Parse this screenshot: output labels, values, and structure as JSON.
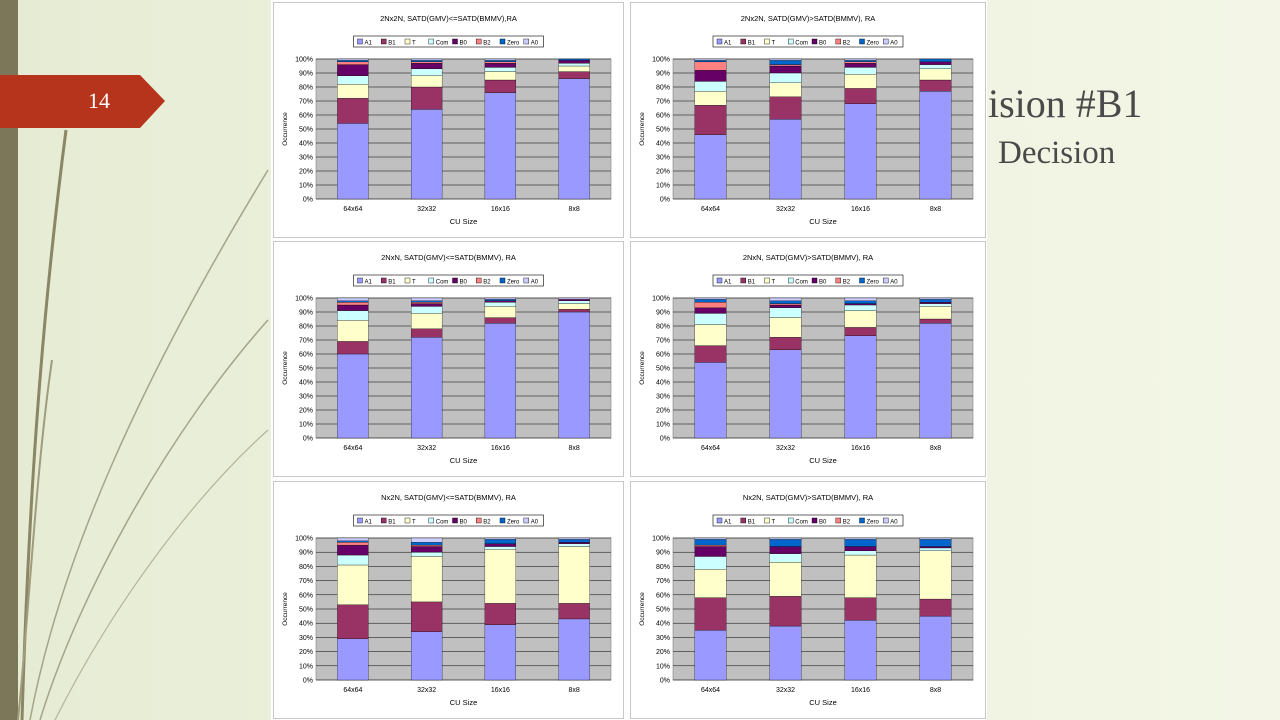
{
  "slide": {
    "number": "14",
    "title_fragment": "ision #B1",
    "subtitle_fragment": "Decision"
  },
  "legend": [
    "A1",
    "B1",
    "T",
    "Com",
    "B0",
    "B2",
    "Zero",
    "A0"
  ],
  "colors": {
    "A1": "#9999ff",
    "B1": "#993366",
    "T": "#ffffcc",
    "Com": "#ccffff",
    "B0": "#660066",
    "B2": "#ff8080",
    "Zero": "#0066cc",
    "A0": "#ccccff",
    "plot_bg": "#c0c0c0",
    "accent": "#b5341b",
    "sidebar": "#7b7758"
  },
  "chart_data": [
    {
      "type": "bar",
      "stacked": true,
      "title": "2Nx2N, SATD(GMV)<=SATD(BMMV),RA",
      "xlabel": "CU Size",
      "ylabel": "Occurrence",
      "categories": [
        "64x64",
        "32x32",
        "16x16",
        "8x8"
      ],
      "yticks": [
        "0%",
        "10%",
        "20%",
        "30%",
        "40%",
        "50%",
        "60%",
        "70%",
        "80%",
        "90%",
        "100%"
      ],
      "ylim": [
        0,
        100
      ],
      "grid": true,
      "legend_position": "top",
      "series": [
        {
          "name": "A1",
          "values": [
            54,
            64,
            76,
            86
          ]
        },
        {
          "name": "B1",
          "values": [
            18,
            16,
            9,
            5
          ]
        },
        {
          "name": "T",
          "values": [
            10,
            8,
            6,
            4
          ]
        },
        {
          "name": "Com",
          "values": [
            6,
            5,
            3,
            2
          ]
        },
        {
          "name": "B0",
          "values": [
            8,
            4,
            3,
            2
          ]
        },
        {
          "name": "B2",
          "values": [
            2,
            1,
            1,
            0
          ]
        },
        {
          "name": "Zero",
          "values": [
            1,
            1,
            1,
            1
          ]
        },
        {
          "name": "A0",
          "values": [
            1,
            1,
            1,
            0
          ]
        }
      ]
    },
    {
      "type": "bar",
      "stacked": true,
      "title": "2Nx2N, SATD(GMV)>SATD(BMMV), RA",
      "xlabel": "CU Size",
      "ylabel": "Occurrence",
      "categories": [
        "64x64",
        "32x32",
        "16x16",
        "8x8"
      ],
      "yticks": [
        "0%",
        "10%",
        "20%",
        "30%",
        "40%",
        "50%",
        "60%",
        "70%",
        "80%",
        "90%",
        "100%"
      ],
      "ylim": [
        0,
        100
      ],
      "grid": true,
      "legend_position": "top",
      "series": [
        {
          "name": "A1",
          "values": [
            46,
            57,
            68,
            77
          ]
        },
        {
          "name": "B1",
          "values": [
            21,
            16,
            11,
            8
          ]
        },
        {
          "name": "T",
          "values": [
            10,
            10,
            10,
            8
          ]
        },
        {
          "name": "Com",
          "values": [
            7,
            7,
            5,
            3
          ]
        },
        {
          "name": "B0",
          "values": [
            8,
            5,
            3,
            2
          ]
        },
        {
          "name": "B2",
          "values": [
            6,
            1,
            1,
            0
          ]
        },
        {
          "name": "Zero",
          "values": [
            1,
            3,
            1,
            2
          ]
        },
        {
          "name": "A0",
          "values": [
            1,
            1,
            1,
            0
          ]
        }
      ]
    },
    {
      "type": "bar",
      "stacked": true,
      "title": "2NxN, SATD(GMV)<=SATD(BMMV), RA",
      "xlabel": "CU Size",
      "ylabel": "Occurrence",
      "categories": [
        "64x64",
        "32x32",
        "16x16",
        "8x8"
      ],
      "yticks": [
        "0%",
        "10%",
        "20%",
        "30%",
        "40%",
        "50%",
        "60%",
        "70%",
        "80%",
        "90%",
        "100%"
      ],
      "ylim": [
        0,
        100
      ],
      "grid": true,
      "legend_position": "top",
      "series": [
        {
          "name": "A1",
          "values": [
            60,
            72,
            82,
            90
          ]
        },
        {
          "name": "B1",
          "values": [
            9,
            6,
            4,
            2
          ]
        },
        {
          "name": "T",
          "values": [
            15,
            11,
            8,
            4
          ]
        },
        {
          "name": "Com",
          "values": [
            7,
            5,
            3,
            2
          ]
        },
        {
          "name": "B0",
          "values": [
            4,
            2,
            1,
            1
          ]
        },
        {
          "name": "B2",
          "values": [
            2,
            1,
            0,
            0
          ]
        },
        {
          "name": "Zero",
          "values": [
            1,
            1,
            1,
            0
          ]
        },
        {
          "name": "A0",
          "values": [
            2,
            2,
            1,
            1
          ]
        }
      ]
    },
    {
      "type": "bar",
      "stacked": true,
      "title": "2NxN, SATD(GMV)>SATD(BMMV), RA",
      "xlabel": "CU Size",
      "ylabel": "Occurrence",
      "categories": [
        "64x64",
        "32x32",
        "16x16",
        "8x8"
      ],
      "yticks": [
        "0%",
        "10%",
        "20%",
        "30%",
        "40%",
        "50%",
        "60%",
        "70%",
        "80%",
        "90%",
        "100%"
      ],
      "ylim": [
        0,
        100
      ],
      "grid": true,
      "legend_position": "top",
      "series": [
        {
          "name": "A1",
          "values": [
            54,
            63,
            73,
            82
          ]
        },
        {
          "name": "B1",
          "values": [
            12,
            9,
            6,
            3
          ]
        },
        {
          "name": "T",
          "values": [
            15,
            14,
            12,
            9
          ]
        },
        {
          "name": "Com",
          "values": [
            8,
            7,
            4,
            2
          ]
        },
        {
          "name": "B0",
          "values": [
            4,
            2,
            1,
            1
          ]
        },
        {
          "name": "B2",
          "values": [
            4,
            1,
            0,
            0
          ]
        },
        {
          "name": "Zero",
          "values": [
            2,
            2,
            2,
            2
          ]
        },
        {
          "name": "A0",
          "values": [
            1,
            2,
            2,
            1
          ]
        }
      ]
    },
    {
      "type": "bar",
      "stacked": true,
      "title": "Nx2N, SATD(GMV)<=SATD(BMMV), RA",
      "xlabel": "CU Size",
      "ylabel": "Occurrence",
      "categories": [
        "64x64",
        "32x32",
        "16x16",
        "8x8"
      ],
      "yticks": [
        "0%",
        "10%",
        "20%",
        "30%",
        "40%",
        "50%",
        "60%",
        "70%",
        "80%",
        "90%",
        "100%"
      ],
      "ylim": [
        0,
        100
      ],
      "grid": true,
      "legend_position": "top",
      "series": [
        {
          "name": "A1",
          "values": [
            29,
            34,
            39,
            43
          ]
        },
        {
          "name": "B1",
          "values": [
            24,
            21,
            15,
            11
          ]
        },
        {
          "name": "T",
          "values": [
            28,
            32,
            38,
            40
          ]
        },
        {
          "name": "Com",
          "values": [
            7,
            3,
            2,
            2
          ]
        },
        {
          "name": "B0",
          "values": [
            7,
            4,
            2,
            1
          ]
        },
        {
          "name": "B2",
          "values": [
            2,
            1,
            0,
            0
          ]
        },
        {
          "name": "Zero",
          "values": [
            1,
            2,
            3,
            2
          ]
        },
        {
          "name": "A0",
          "values": [
            2,
            3,
            1,
            1
          ]
        }
      ]
    },
    {
      "type": "bar",
      "stacked": true,
      "title": "Nx2N, SATD(GMV)>SATD(BMMV), RA",
      "xlabel": "CU Size",
      "ylabel": "Occurrence",
      "categories": [
        "64x64",
        "32x32",
        "16x16",
        "8x8"
      ],
      "yticks": [
        "0%",
        "10%",
        "20%",
        "30%",
        "40%",
        "50%",
        "60%",
        "70%",
        "80%",
        "90%",
        "100%"
      ],
      "ylim": [
        0,
        100
      ],
      "grid": true,
      "legend_position": "top",
      "series": [
        {
          "name": "A1",
          "values": [
            35,
            38,
            42,
            45
          ]
        },
        {
          "name": "B1",
          "values": [
            23,
            21,
            16,
            12
          ]
        },
        {
          "name": "T",
          "values": [
            20,
            24,
            30,
            34
          ]
        },
        {
          "name": "Com",
          "values": [
            9,
            6,
            3,
            2
          ]
        },
        {
          "name": "B0",
          "values": [
            7,
            5,
            3,
            1
          ]
        },
        {
          "name": "B2",
          "values": [
            1,
            0,
            0,
            0
          ]
        },
        {
          "name": "Zero",
          "values": [
            4,
            5,
            5,
            5
          ]
        },
        {
          "name": "A0",
          "values": [
            1,
            1,
            1,
            1
          ]
        }
      ]
    }
  ]
}
